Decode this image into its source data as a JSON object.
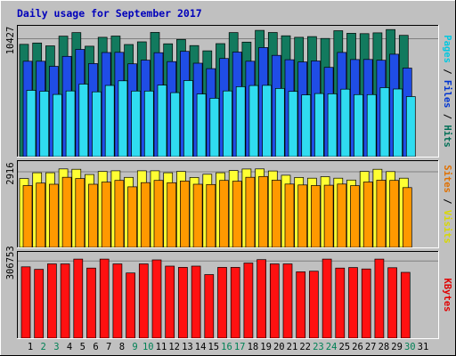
{
  "chart_data": {
    "type": "bar",
    "title": "Daily usage for September 2017",
    "days": [
      "1",
      "2",
      "3",
      "4",
      "5",
      "6",
      "7",
      "8",
      "9",
      "10",
      "11",
      "12",
      "13",
      "14",
      "15",
      "16",
      "17",
      "18",
      "19",
      "20",
      "21",
      "22",
      "23",
      "24",
      "25",
      "26",
      "27",
      "28",
      "29",
      "30",
      "31"
    ],
    "weekend_days": [
      "2",
      "3",
      "9",
      "10",
      "16",
      "17",
      "23",
      "24",
      "30"
    ],
    "panels": [
      {
        "id": "pages-files-hits",
        "tick_label": "10427",
        "tick_value": 10427,
        "ymax": 11500,
        "legend": [
          {
            "text": "Pages",
            "color": "#00c8e0"
          },
          {
            "text": " / ",
            "color": "#000000"
          },
          {
            "text": "Files",
            "color": "#0034d0"
          },
          {
            "text": " / ",
            "color": "#000000"
          },
          {
            "text": "Hits",
            "color": "#006e55"
          }
        ],
        "series": [
          {
            "name": "Hits",
            "color": "#127a5e",
            "values": [
              10009,
              10130,
              9875,
              10737,
              11057,
              9841,
              10634,
              10748,
              9993,
              10229,
              11070,
              10057,
              10442,
              9899,
              9427,
              10074,
              11059,
              10208,
              11255,
              11067,
              10774,
              10632,
              10701,
              10533,
              11223,
              10994,
              10960,
              11034,
              11323,
              10812,
              null
            ]
          },
          {
            "name": "Files",
            "color": "#1f4de6",
            "values": [
              8505,
              8505,
              8052,
              8936,
              9557,
              8294,
              9282,
              9299,
              8272,
              8600,
              9263,
              8470,
              9385,
              8329,
              7840,
              8751,
              9320,
              8505,
              9727,
              9022,
              8640,
              8435,
              8527,
              7951,
              9290,
              8651,
              8658,
              8590,
              9127,
              7894,
              null
            ]
          },
          {
            "name": "Pages",
            "color": "#30dcf0",
            "values": [
              5908,
              5830,
              5540,
              5854,
              6460,
              5773,
              6341,
              6757,
              5846,
              5848,
              6379,
              5700,
              6778,
              5585,
              5201,
              5850,
              6235,
              6337,
              6350,
              6077,
              5812,
              5508,
              5627,
              5598,
              6009,
              5524,
              5531,
              6143,
              6026,
              5353,
              null
            ]
          }
        ]
      },
      {
        "id": "visits-sites",
        "tick_label": "2916",
        "tick_value": 2916,
        "ymax": 3300,
        "legend": [
          {
            "text": "Sites",
            "color": "#e07000"
          },
          {
            "text": " / ",
            "color": "#000000"
          },
          {
            "text": "Visits",
            "color": "#d8d800"
          }
        ],
        "series": [
          {
            "name": "Visits",
            "color": "#ffff33",
            "values": [
              2690,
              2916,
              2916,
              3065,
              3050,
              2844,
              2967,
              2992,
              2735,
              2992,
              2992,
              2916,
              2967,
              2729,
              2854,
              2916,
              3002,
              3059,
              3065,
              2983,
              2816,
              2732,
              2703,
              2760,
              2703,
              2630,
              2967,
              3050,
              2960,
              2703,
              null
            ]
          },
          {
            "name": "Sites",
            "color": "#ff9900",
            "values": [
              2413,
              2513,
              2465,
              2736,
              2690,
              2465,
              2549,
              2615,
              2367,
              2530,
              2614,
              2525,
              2590,
              2465,
              2456,
              2614,
              2583,
              2736,
              2769,
              2624,
              2473,
              2437,
              2415,
              2427,
              2475,
              2410,
              2553,
              2624,
              2614,
              2333,
              null
            ]
          }
        ]
      },
      {
        "id": "kbytes",
        "tick_label": "306753",
        "tick_value": 306753,
        "ymax": 340000,
        "legend": [
          {
            "text": "KBytes",
            "color": "#e00000"
          }
        ],
        "series": [
          {
            "name": "KBytes",
            "color": "#ff1111",
            "values": [
              287000,
              277000,
              298700,
              298700,
              318000,
              282000,
              318000,
              298700,
              262500,
              298700,
              315000,
              290000,
              285000,
              290000,
              256000,
              285000,
              285000,
              302500,
              316000,
              298700,
              298700,
              267000,
              269600,
              318000,
              282000,
              284000,
              278500,
              318000,
              283500,
              265000,
              null
            ]
          }
        ]
      }
    ]
  }
}
